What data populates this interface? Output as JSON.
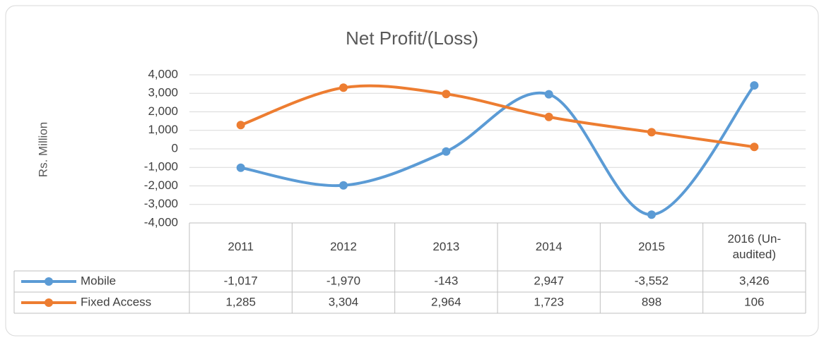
{
  "chart_data": {
    "type": "line",
    "title": "Net Profit/(Loss)",
    "y_label": "Rs. Million",
    "categories": [
      "2011",
      "2012",
      "2013",
      "2014",
      "2015",
      "2016 (Un-audited)"
    ],
    "series": [
      {
        "name": "Mobile",
        "color": "#5b9bd5",
        "values": [
          -1017,
          -1970,
          -143,
          2947,
          -3552,
          3426
        ],
        "value_labels": [
          "-1,017",
          "-1,970",
          "-143",
          "2,947",
          "-3,552",
          "3,426"
        ]
      },
      {
        "name": "Fixed Access",
        "color": "#ed7d31",
        "values": [
          1285,
          3304,
          2964,
          1723,
          898,
          106
        ],
        "value_labels": [
          "1,285",
          "3,304",
          "2,964",
          "1,723",
          "898",
          "106"
        ]
      }
    ],
    "ylim": [
      -4000,
      4000
    ],
    "yticks": [
      {
        "value": -4000,
        "label": "-4,000"
      },
      {
        "value": -3000,
        "label": "-3,000"
      },
      {
        "value": -2000,
        "label": "-2,000"
      },
      {
        "value": -1000,
        "label": "-1,000"
      },
      0,
      {
        "value": 1000,
        "label": "1,000"
      },
      {
        "value": 2000,
        "label": "2,000"
      },
      {
        "value": 3000,
        "label": "3,000"
      },
      {
        "value": 4000,
        "label": "4,000"
      }
    ],
    "grid": true,
    "smooth": true
  }
}
